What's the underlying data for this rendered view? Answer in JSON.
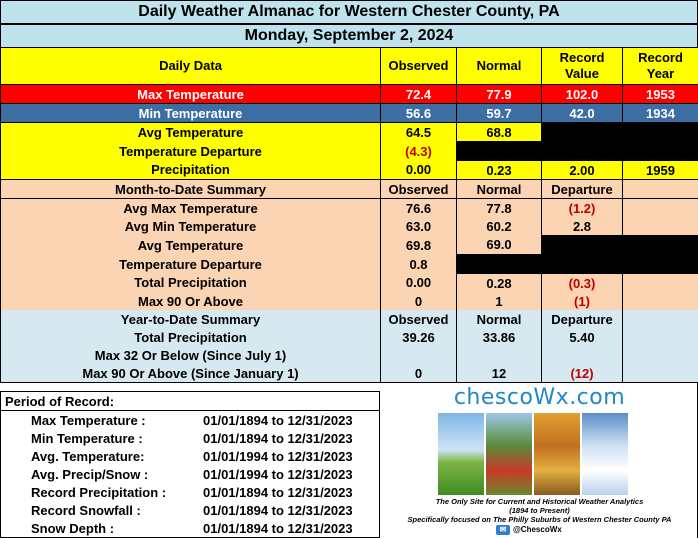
{
  "title": "Daily Weather Almanac for Western Chester County, PA",
  "date": "Monday, September 2, 2024",
  "daily": {
    "headers": [
      "Daily Data",
      "Observed",
      "Normal",
      "Record\nValue",
      "Record\nYear"
    ],
    "rows": [
      {
        "label": "Max Temperature",
        "observed": "72.4",
        "normal": "77.9",
        "record_value": "102.0",
        "record_year": "1953"
      },
      {
        "label": "Min Temperature",
        "observed": "56.6",
        "normal": "59.7",
        "record_value": "42.0",
        "record_year": "1934"
      },
      {
        "label": "Avg Temperature",
        "observed": "64.5",
        "normal": "68.8"
      },
      {
        "label": "Temperature Departure",
        "observed": "(4.3)"
      },
      {
        "label": "Precipitation",
        "observed": "0.00",
        "normal": "0.23",
        "record_value": "2.00",
        "record_year": "1959"
      }
    ]
  },
  "month": {
    "headers": [
      "Month-to-Date Summary",
      "Observed",
      "Normal",
      "Departure"
    ],
    "rows": [
      {
        "label": "Avg Max Temperature",
        "observed": "76.6",
        "normal": "77.8",
        "departure": "(1.2)"
      },
      {
        "label": "Avg Min Temperature",
        "observed": "63.0",
        "normal": "60.2",
        "departure": "2.8"
      },
      {
        "label": "Avg Temperature",
        "observed": "69.8",
        "normal": "69.0"
      },
      {
        "label": "Temperature Departure",
        "observed": "0.8"
      },
      {
        "label": "Total Precipitation",
        "observed": "0.00",
        "normal": "0.28",
        "departure": "(0.3)"
      },
      {
        "label": "Max 90 Or Above",
        "observed": "0",
        "normal": "1",
        "departure": "(1)"
      }
    ]
  },
  "year": {
    "headers": [
      "Year-to-Date Summary",
      "Observed",
      "Normal",
      "Departure"
    ],
    "rows": [
      {
        "label": "Total Precipitation",
        "observed": "39.26",
        "normal": "33.86",
        "departure": "5.40"
      },
      {
        "label": "Max 32 Or Below (Since July 1)",
        "observed": "",
        "normal": "",
        "departure": ""
      },
      {
        "label": "Max 90 Or Above (Since January 1)",
        "observed": "0",
        "normal": "12",
        "departure": "(12)"
      }
    ]
  },
  "period": {
    "title": "Period of Record:",
    "rows": [
      {
        "label": "Max Temperature :",
        "value": "01/01/1894 to 12/31/2023"
      },
      {
        "label": "Min Temperature :",
        "value": "01/01/1894 to 12/31/2023"
      },
      {
        "label": "Avg. Temperature:",
        "value": "01/01/1994 to 12/31/2023"
      },
      {
        "label": "Avg. Precip/Snow :",
        "value": "01/01/1994 to 12/31/2023"
      },
      {
        "label": "Record Precipitation :",
        "value": "01/01/1894 to 12/31/2023"
      },
      {
        "label": "Record Snowfall :",
        "value": "01/01/1894 to 12/31/2023"
      },
      {
        "label": "Snow Depth :",
        "value": "01/01/1894 to 12/31/2023"
      }
    ]
  },
  "logo": {
    "name": "chescoWx.com",
    "tagline1": "The Only Site for Current and Historical Weather Analytics",
    "tagline2": "(1894 to Present)",
    "tagline3": "Specifically focused on The Philly Suburbs of Western Chester County PA",
    "twitter": "@ChescoWx"
  },
  "colors": {
    "title_bg": "#bfe3ec",
    "yellow": "#ffff00",
    "max_red": "#ff0000",
    "min_blue": "#3d6ea3",
    "peach": "#fbd4b4",
    "light_blue": "#d6e9f0",
    "negative": "#c00000",
    "logo_blue": "#1e88c8"
  }
}
